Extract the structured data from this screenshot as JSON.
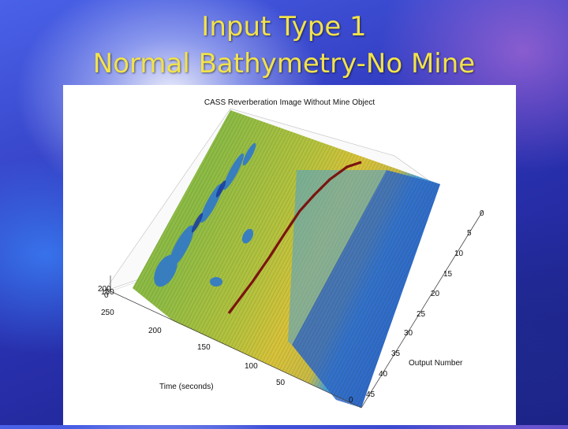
{
  "slide": {
    "title_line1": "Input Type 1",
    "title_line2": "Normal Bathymetry-No Mine"
  },
  "chart_data": {
    "type": "surface",
    "title": "CASS Reverberation Image Without Mine Object",
    "xlabel": "Time (seconds)",
    "ylabel": "Output Number",
    "x_ticks": [
      "250",
      "200",
      "150",
      "100",
      "50",
      "0"
    ],
    "y_ticks": [
      "0",
      "5",
      "10",
      "15",
      "20",
      "25",
      "30",
      "35",
      "40",
      "45"
    ],
    "z_ticks": [
      "200",
      "150",
      "100",
      "50",
      "0"
    ],
    "xlim": [
      0,
      250
    ],
    "ylim": [
      0,
      45
    ],
    "view": "3-D perspective surface with colormap shading (blue low, yellow/orange mid, dark red high)",
    "colors": {
      "low": "#2f68c8",
      "mid_low": "#4aa0d6",
      "mid": "#9cc04a",
      "mid_high": "#d8c23a",
      "high": "#7a1410"
    }
  }
}
